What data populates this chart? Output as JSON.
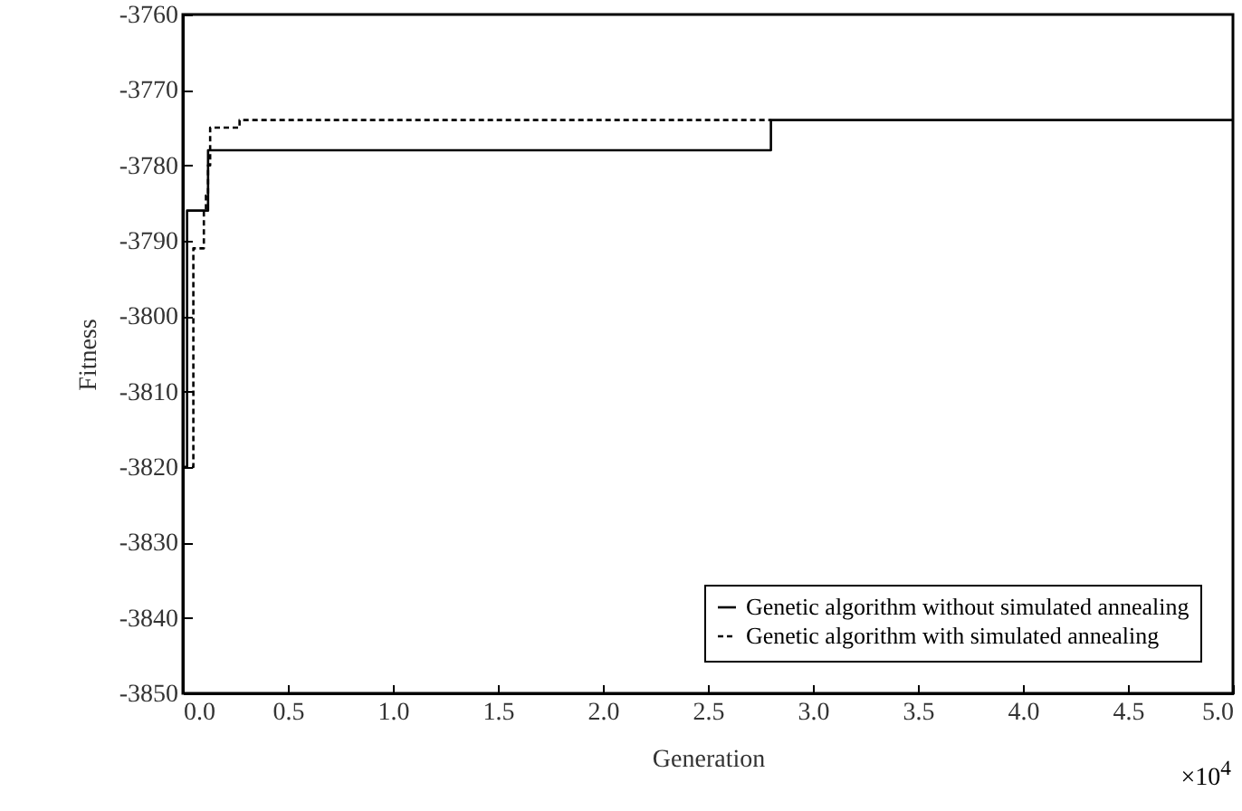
{
  "chart_data": {
    "type": "step",
    "xlabel": "Generation",
    "ylabel": "Fitness",
    "annotations": [
      "×10$^{4}$"
    ],
    "series": [
      {
        "name": "Genetic algorithm without simulated annealing",
        "color": "#000000",
        "line_style": "solid",
        "x": [
          0,
          0.02,
          0.12,
          2.8,
          5.0
        ],
        "values": [
          -3820,
          -3786,
          -3778,
          -3774,
          -3774
        ]
      },
      {
        "name": "Genetic algorithm with simulated annealing",
        "color": "#000000",
        "line_style": "dashed",
        "x": [
          0,
          0.05,
          0.1,
          0.11,
          0.12,
          0.13,
          0.27,
          2.8
        ],
        "values": [
          -3820,
          -3791,
          -3786,
          -3784,
          -3780,
          -3775,
          -3774,
          -3774
        ]
      }
    ],
    "xlim": [
      0,
      5.0
    ],
    "xticks": [
      {
        "value": 0,
        "label": "0.0"
      },
      0.5,
      {
        "value": 1,
        "label": "1.0"
      },
      1.5,
      {
        "value": 2,
        "label": "2.0"
      },
      2.5,
      {
        "value": 3,
        "label": "3.0"
      },
      3.5,
      {
        "value": 4,
        "label": "4.0"
      },
      4.5,
      {
        "value": 5,
        "label": "5.0"
      }
    ],
    "ylim": [
      -3850,
      -3760
    ],
    "yticks": [
      -3850,
      -3840,
      -3830,
      -3820,
      -3810,
      -3800,
      -3790,
      -3780,
      -3770,
      -3760
    ],
    "grid": false,
    "legend": "bottom right",
    "marker": "none"
  }
}
